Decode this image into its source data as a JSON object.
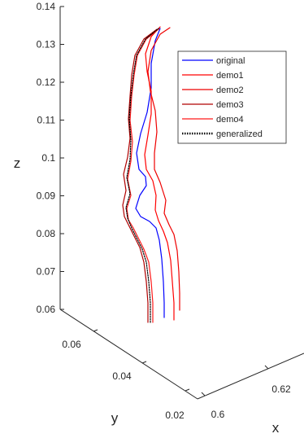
{
  "chart_data": {
    "type": "line",
    "projection": "3d",
    "xlabel": "x",
    "ylabel": "y",
    "zlabel": "z",
    "x_ticks": [
      "0.6",
      "0.62"
    ],
    "y_ticks": [
      "0.02",
      "0.04",
      "0.06"
    ],
    "z_ticks": [
      "0.06",
      "0.07",
      "0.08",
      "0.09",
      "0.1",
      "0.11",
      "0.12",
      "0.13",
      "0.14"
    ],
    "zlim": [
      0.06,
      0.14
    ],
    "grid": false,
    "legend_position": "top-right",
    "series": [
      {
        "name": "original",
        "color": "#0000ff",
        "style": "solid",
        "z": [
          0.0595,
          0.063,
          0.068,
          0.073,
          0.077,
          0.081,
          0.084,
          0.086,
          0.088,
          0.09,
          0.093,
          0.097,
          0.101,
          0.105,
          0.11,
          0.115,
          0.12,
          0.125,
          0.13,
          0.135
        ]
      },
      {
        "name": "demo1",
        "color": "#ff0000",
        "style": "solid",
        "z": [
          0.0598,
          0.064,
          0.069,
          0.074,
          0.078,
          0.082,
          0.085,
          0.088,
          0.091,
          0.094,
          0.097,
          0.1,
          0.104,
          0.108,
          0.112,
          0.117,
          0.122,
          0.127,
          0.131,
          0.1355
        ]
      },
      {
        "name": "demo2",
        "color": "#ee0000",
        "style": "solid",
        "z": [
          0.0615,
          0.066,
          0.071,
          0.075,
          0.079,
          0.083,
          0.086,
          0.089,
          0.092,
          0.095,
          0.098,
          0.101,
          0.105,
          0.109,
          0.113,
          0.118,
          0.123,
          0.128,
          0.132,
          0.1355
        ]
      },
      {
        "name": "demo3",
        "color": "#b00000",
        "style": "solid",
        "z": [
          0.0575,
          0.062,
          0.067,
          0.072,
          0.077,
          0.081,
          0.084,
          0.087,
          0.09,
          0.094,
          0.098,
          0.102,
          0.107,
          0.112,
          0.117,
          0.122,
          0.127,
          0.131,
          0.1345,
          0.1355
        ]
      },
      {
        "name": "demo4",
        "color": "#ff1a1a",
        "style": "solid",
        "z": [
          0.0585,
          0.063,
          0.068,
          0.073,
          0.078,
          0.082,
          0.085,
          0.088,
          0.091,
          0.095,
          0.099,
          0.103,
          0.108,
          0.113,
          0.118,
          0.123,
          0.128,
          0.132,
          0.1345,
          0.1355
        ]
      },
      {
        "name": "generalized",
        "color": "#000000",
        "style": "dotted",
        "z": [
          0.0585,
          0.063,
          0.068,
          0.073,
          0.078,
          0.082,
          0.085,
          0.088,
          0.091,
          0.095,
          0.099,
          0.103,
          0.108,
          0.113,
          0.118,
          0.123,
          0.128,
          0.132,
          0.1345,
          0.1355
        ]
      }
    ]
  }
}
